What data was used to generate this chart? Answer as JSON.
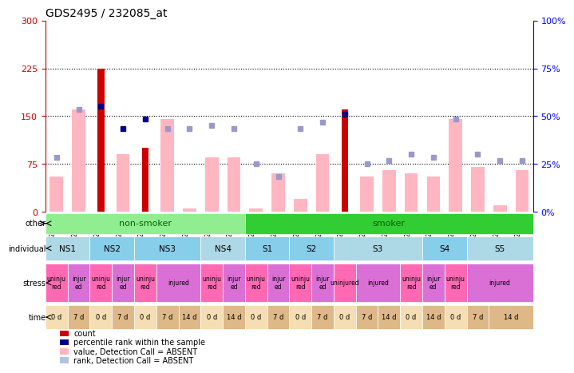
{
  "title": "GDS2495 / 232085_at",
  "samples": [
    "GSM122528",
    "GSM122531",
    "GSM122539",
    "GSM122540",
    "GSM122541",
    "GSM122542",
    "GSM122543",
    "GSM122544",
    "GSM122546",
    "GSM122527",
    "GSM122529",
    "GSM122530",
    "GSM122532",
    "GSM122533",
    "GSM122535",
    "GSM122536",
    "GSM122538",
    "GSM122534",
    "GSM122537",
    "GSM122545",
    "GSM122547",
    "GSM122548"
  ],
  "red_bars": [
    0,
    0,
    225,
    0,
    100,
    0,
    0,
    0,
    0,
    0,
    0,
    0,
    0,
    160,
    0,
    0,
    0,
    0,
    0,
    0,
    0,
    0
  ],
  "pink_bars": [
    55,
    160,
    0,
    90,
    0,
    145,
    5,
    85,
    85,
    5,
    60,
    20,
    90,
    0,
    55,
    65,
    60,
    55,
    145,
    70,
    10,
    65
  ],
  "blue_squares": [
    null,
    null,
    165,
    130,
    145,
    null,
    null,
    null,
    null,
    null,
    null,
    null,
    null,
    153,
    null,
    null,
    null,
    null,
    null,
    null,
    null,
    null
  ],
  "lavender_squares": [
    85,
    160,
    null,
    null,
    null,
    130,
    130,
    135,
    130,
    75,
    55,
    130,
    140,
    null,
    75,
    80,
    90,
    85,
    145,
    90,
    80,
    80
  ],
  "ylim_left": [
    0,
    300
  ],
  "ylim_right": [
    0,
    100
  ],
  "yticks_left": [
    0,
    75,
    150,
    225,
    300
  ],
  "yticks_right": [
    0,
    25,
    50,
    75,
    100
  ],
  "ytick_labels_left": [
    "0",
    "75",
    "150",
    "225",
    "300"
  ],
  "ytick_labels_right": [
    "0%",
    "25%",
    "50%",
    "75%",
    "100%"
  ],
  "hlines": [
    75,
    150,
    225
  ],
  "other_row": {
    "non_smoker": {
      "start": 0,
      "end": 9,
      "label": "non-smoker",
      "color": "#90EE90"
    },
    "smoker": {
      "start": 9,
      "end": 22,
      "label": "smoker",
      "color": "#32CD32"
    }
  },
  "individual_row": [
    {
      "label": "NS1",
      "start": 0,
      "end": 2,
      "color": "#ADD8E6"
    },
    {
      "label": "NS2",
      "start": 2,
      "end": 4,
      "color": "#87CEEB"
    },
    {
      "label": "NS3",
      "start": 4,
      "end": 7,
      "color": "#87CEEB"
    },
    {
      "label": "NS4",
      "start": 7,
      "end": 9,
      "color": "#ADD8E6"
    },
    {
      "label": "S1",
      "start": 9,
      "end": 11,
      "color": "#87CEEB"
    },
    {
      "label": "S2",
      "start": 11,
      "end": 13,
      "color": "#87CEEB"
    },
    {
      "label": "S3",
      "start": 13,
      "end": 17,
      "color": "#ADD8E6"
    },
    {
      "label": "S4",
      "start": 17,
      "end": 19,
      "color": "#87CEEB"
    },
    {
      "label": "S5",
      "start": 19,
      "end": 22,
      "color": "#ADD8E6"
    }
  ],
  "stress_row": [
    {
      "label": "uninju\nred",
      "start": 0,
      "end": 1,
      "color": "#FF69B4"
    },
    {
      "label": "injur\ned",
      "start": 1,
      "end": 2,
      "color": "#DA70D6"
    },
    {
      "label": "uninju\nred",
      "start": 2,
      "end": 3,
      "color": "#FF69B4"
    },
    {
      "label": "injur\ned",
      "start": 3,
      "end": 4,
      "color": "#DA70D6"
    },
    {
      "label": "uninju\nred",
      "start": 4,
      "end": 5,
      "color": "#FF69B4"
    },
    {
      "label": "injured",
      "start": 5,
      "end": 7,
      "color": "#DA70D6"
    },
    {
      "label": "uninju\nred",
      "start": 7,
      "end": 8,
      "color": "#FF69B4"
    },
    {
      "label": "injur\ned",
      "start": 8,
      "end": 9,
      "color": "#DA70D6"
    },
    {
      "label": "uninju\nred",
      "start": 9,
      "end": 10,
      "color": "#FF69B4"
    },
    {
      "label": "injur\ned",
      "start": 10,
      "end": 11,
      "color": "#DA70D6"
    },
    {
      "label": "uninju\nred",
      "start": 11,
      "end": 12,
      "color": "#FF69B4"
    },
    {
      "label": "injur\ned",
      "start": 12,
      "end": 13,
      "color": "#DA70D6"
    },
    {
      "label": "uninjured",
      "start": 13,
      "end": 14,
      "color": "#FF69B4"
    },
    {
      "label": "injured",
      "start": 14,
      "end": 16,
      "color": "#DA70D6"
    },
    {
      "label": "uninju\nred",
      "start": 16,
      "end": 17,
      "color": "#FF69B4"
    },
    {
      "label": "injur\ned",
      "start": 17,
      "end": 18,
      "color": "#DA70D6"
    },
    {
      "label": "uninju\nred",
      "start": 18,
      "end": 19,
      "color": "#FF69B4"
    },
    {
      "label": "injured",
      "start": 19,
      "end": 22,
      "color": "#DA70D6"
    }
  ],
  "time_row": [
    {
      "label": "0 d",
      "start": 0,
      "end": 1,
      "color": "#F5DEB3"
    },
    {
      "label": "7 d",
      "start": 1,
      "end": 2,
      "color": "#DEB887"
    },
    {
      "label": "0 d",
      "start": 2,
      "end": 3,
      "color": "#F5DEB3"
    },
    {
      "label": "7 d",
      "start": 3,
      "end": 4,
      "color": "#DEB887"
    },
    {
      "label": "0 d",
      "start": 4,
      "end": 5,
      "color": "#F5DEB3"
    },
    {
      "label": "7 d",
      "start": 5,
      "end": 6,
      "color": "#DEB887"
    },
    {
      "label": "14 d",
      "start": 6,
      "end": 7,
      "color": "#DEB887"
    },
    {
      "label": "0 d",
      "start": 7,
      "end": 8,
      "color": "#F5DEB3"
    },
    {
      "label": "14 d",
      "start": 8,
      "end": 9,
      "color": "#DEB887"
    },
    {
      "label": "0 d",
      "start": 9,
      "end": 10,
      "color": "#F5DEB3"
    },
    {
      "label": "7 d",
      "start": 10,
      "end": 11,
      "color": "#DEB887"
    },
    {
      "label": "0 d",
      "start": 11,
      "end": 12,
      "color": "#F5DEB3"
    },
    {
      "label": "7 d",
      "start": 12,
      "end": 13,
      "color": "#DEB887"
    },
    {
      "label": "0 d",
      "start": 13,
      "end": 14,
      "color": "#F5DEB3"
    },
    {
      "label": "7 d",
      "start": 14,
      "end": 15,
      "color": "#DEB887"
    },
    {
      "label": "14 d",
      "start": 15,
      "end": 16,
      "color": "#DEB887"
    },
    {
      "label": "0 d",
      "start": 16,
      "end": 17,
      "color": "#F5DEB3"
    },
    {
      "label": "14 d",
      "start": 17,
      "end": 18,
      "color": "#DEB887"
    },
    {
      "label": "0 d",
      "start": 18,
      "end": 19,
      "color": "#F5DEB3"
    },
    {
      "label": "7 d",
      "start": 19,
      "end": 20,
      "color": "#DEB887"
    },
    {
      "label": "14 d",
      "start": 20,
      "end": 22,
      "color": "#DEB887"
    }
  ],
  "legend_items": [
    {
      "color": "#CC0000",
      "label": "count"
    },
    {
      "color": "#00008B",
      "label": "percentile rank within the sample"
    },
    {
      "color": "#FFB6C1",
      "label": "value, Detection Call = ABSENT"
    },
    {
      "color": "#B0C4DE",
      "label": "rank, Detection Call = ABSENT"
    }
  ],
  "bar_width": 0.6,
  "plot_bg": "#F0F0F0",
  "axis_bg": "white"
}
